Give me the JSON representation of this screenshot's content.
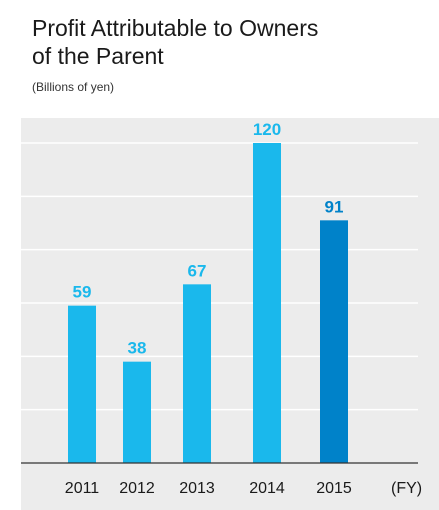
{
  "header": {
    "title_line1": "Profit Attributable to Owners",
    "title_line2": "of the Parent",
    "unit": "(Billions of yen)"
  },
  "chart_data": {
    "type": "bar",
    "title": "Profit Attributable to Owners of the Parent",
    "ylabel": "(Billions of yen)",
    "x_unit_label": "(FY)",
    "categories": [
      "2011",
      "2012",
      "2013",
      "2014",
      "2015"
    ],
    "values": [
      59,
      38,
      67,
      120,
      91
    ],
    "ylim": [
      0,
      120
    ],
    "grid": true,
    "colors": {
      "bar": "#1ab8ec",
      "bar_highlight": "#0082c9",
      "label": "#1ab8ec",
      "label_highlight": "#0082c9",
      "grid": "#ffffff",
      "axis": "#333333"
    },
    "highlight_index": 4
  }
}
